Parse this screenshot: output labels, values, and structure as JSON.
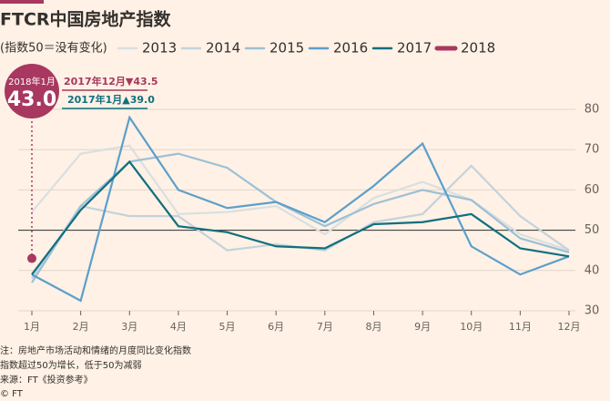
{
  "chart_data": {
    "type": "line",
    "title": "FTCR中国房地产指数",
    "subtitle": "(指数50＝没有变化)",
    "categories": [
      "1月",
      "2月",
      "3月",
      "4月",
      "5月",
      "6月",
      "7月",
      "8月",
      "9月",
      "10月",
      "11月",
      "12月"
    ],
    "series": [
      {
        "name": "2013",
        "color": "#d9dfe0",
        "values": [
          54.5,
          69,
          71,
          54,
          54.5,
          56,
          49,
          58,
          62,
          57.5,
          49,
          45
        ]
      },
      {
        "name": "2014",
        "color": "#c2d3db",
        "values": [
          38,
          56,
          53.5,
          53.5,
          45,
          46.5,
          45,
          52,
          54,
          66,
          53.5,
          45
        ]
      },
      {
        "name": "2015",
        "color": "#9cc0d6",
        "values": [
          37,
          56,
          67,
          69,
          65.5,
          57,
          51,
          56.5,
          60,
          57.5,
          48,
          44.5
        ]
      },
      {
        "name": "2016",
        "color": "#5b9fcb",
        "values": [
          39,
          32.5,
          78,
          60,
          55.5,
          57,
          52,
          61,
          71.5,
          46,
          39,
          43.5
        ]
      },
      {
        "name": "2017",
        "color": "#0f6f80",
        "values": [
          39,
          55,
          67,
          51,
          49.5,
          46,
          45.5,
          51.5,
          52,
          54,
          45.5,
          43.5
        ]
      },
      {
        "name": "2018",
        "color": "#a8385f",
        "values": [
          43.0,
          null,
          null,
          null,
          null,
          null,
          null,
          null,
          null,
          null,
          null,
          null
        ],
        "value_labels": [
          "43.0",
          null,
          null,
          null,
          null,
          null,
          null,
          null,
          null,
          null,
          null,
          null
        ]
      }
    ],
    "ylim": [
      30,
      80
    ],
    "yticks": [
      30,
      40,
      50,
      60,
      70,
      80
    ],
    "reference_line": 50,
    "grid": true,
    "annotations": [
      "2018年1月",
      "2017年12月▼43.5",
      "2017年1月▲39.0"
    ],
    "notes": [
      "注：房地产市场活动和情绪的月度同比变化指数",
      "指数超过50为增长，低于50为减弱",
      "来源：FT《投资参考》",
      "© FT"
    ]
  }
}
